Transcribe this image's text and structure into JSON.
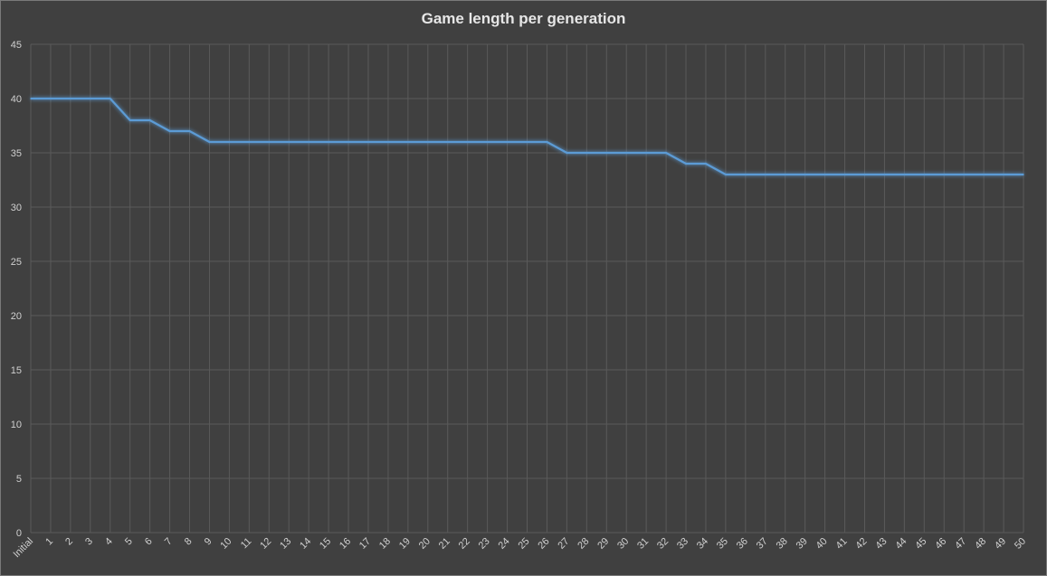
{
  "chart_data": {
    "type": "line",
    "title": "Game length per generation",
    "xlabel": "",
    "ylabel": "",
    "categories": [
      "Initial",
      "1",
      "2",
      "3",
      "4",
      "5",
      "6",
      "7",
      "8",
      "9",
      "10",
      "11",
      "12",
      "13",
      "14",
      "15",
      "16",
      "17",
      "18",
      "19",
      "20",
      "21",
      "22",
      "23",
      "24",
      "25",
      "26",
      "27",
      "28",
      "29",
      "30",
      "31",
      "32",
      "33",
      "34",
      "35",
      "36",
      "37",
      "38",
      "39",
      "40",
      "41",
      "42",
      "43",
      "44",
      "45",
      "46",
      "47",
      "48",
      "49",
      "50"
    ],
    "series": [
      {
        "values": [
          40,
          40,
          40,
          40,
          40,
          38,
          38,
          37,
          37,
          36,
          36,
          36,
          36,
          36,
          36,
          36,
          36,
          36,
          36,
          36,
          36,
          36,
          36,
          36,
          36,
          36,
          36,
          35,
          35,
          35,
          35,
          35,
          35,
          34,
          34,
          33,
          33,
          33,
          33,
          33,
          33,
          33,
          33,
          33,
          33,
          33,
          33,
          33,
          33,
          33,
          33
        ],
        "color": "#5b9bd5"
      }
    ],
    "ylim": [
      0,
      45
    ],
    "yticks": [
      0,
      5,
      10,
      15,
      20,
      25,
      30,
      35,
      40,
      45
    ],
    "grid": true,
    "legend": "none",
    "colors": {
      "background": "#404040",
      "grid": "#5a5a5a",
      "text": "#d0d0d0"
    }
  }
}
